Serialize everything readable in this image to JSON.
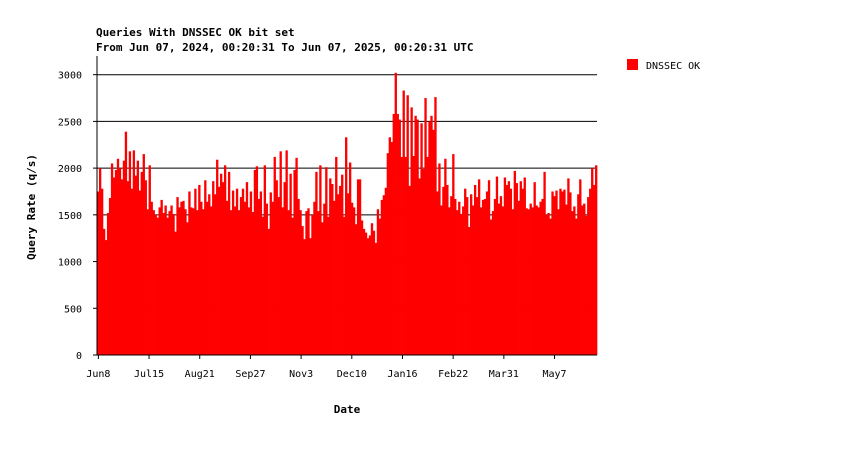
{
  "chart_data": {
    "type": "bar",
    "title": "Queries With DNSSEC OK bit set",
    "subtitle": "From Jun 07, 2024, 00:20:31 To Jun 07, 2025, 00:20:31 UTC",
    "xlabel": "Date",
    "ylabel": "Query Rate (q/s)",
    "x_start": "2024-06-07",
    "x_end": "2025-06-07",
    "ylim": [
      0,
      3200
    ],
    "yticks": [
      0,
      500,
      1000,
      1500,
      2000,
      2500,
      3000
    ],
    "xticks": [
      {
        "label": "Jun8",
        "date": "2024-06-08"
      },
      {
        "label": "Jul15",
        "date": "2024-07-15"
      },
      {
        "label": "Aug21",
        "date": "2024-08-21"
      },
      {
        "label": "Sep27",
        "date": "2024-09-27"
      },
      {
        "label": "Nov3",
        "date": "2024-11-03"
      },
      {
        "label": "Dec10",
        "date": "2024-12-10"
      },
      {
        "label": "Jan16",
        "date": "2025-01-16"
      },
      {
        "label": "Feb22",
        "date": "2025-02-22"
      },
      {
        "label": "Mar31",
        "date": "2025-03-31"
      },
      {
        "label": "May7",
        "date": "2025-05-07"
      }
    ],
    "grid": "horizontal",
    "legend_position": "right",
    "series": [
      {
        "name": "DNSSEC OK",
        "color": "#ff0000",
        "values": [
          1750,
          2000,
          1780,
          1350,
          1230,
          1520,
          1680,
          2050,
          1900,
          1980,
          2100,
          2000,
          1880,
          2080,
          2390,
          1860,
          2180,
          1780,
          2190,
          1920,
          2080,
          1760,
          1960,
          2150,
          1870,
          1560,
          2030,
          1640,
          1550,
          1500,
          1470,
          1580,
          1660,
          1520,
          1600,
          1470,
          1540,
          1600,
          1510,
          1320,
          1690,
          1580,
          1640,
          1650,
          1560,
          1420,
          1750,
          1580,
          1570,
          1780,
          1550,
          1820,
          1640,
          1560,
          1870,
          1640,
          1720,
          1590,
          1860,
          1720,
          2090,
          1800,
          1940,
          1850,
          2030,
          1650,
          1960,
          1550,
          1760,
          1590,
          1780,
          1550,
          1690,
          1780,
          1640,
          1850,
          1580,
          1750,
          1530,
          1980,
          2020,
          1670,
          1750,
          1480,
          2030,
          1620,
          1350,
          1740,
          1640,
          2120,
          1870,
          1690,
          2180,
          1580,
          1850,
          2190,
          1550,
          1940,
          1470,
          1980,
          2110,
          1670,
          1550,
          1380,
          1240,
          1540,
          1570,
          1250,
          1500,
          1640,
          1960,
          1540,
          2030,
          1420,
          1620,
          2010,
          1480,
          1890,
          1830,
          1650,
          2120,
          1720,
          1810,
          1930,
          1480,
          2330,
          1730,
          2060,
          1630,
          1580,
          1400,
          1880,
          1880,
          1440,
          1350,
          1310,
          1250,
          1280,
          1410,
          1330,
          1200,
          1560,
          1460,
          1660,
          1710,
          1790,
          2160,
          2330,
          2280,
          2580,
          3020,
          2580,
          2520,
          2120,
          2830,
          2120,
          2780,
          1810,
          2650,
          2130,
          2560,
          2520,
          1890,
          2480,
          1990,
          2750,
          2120,
          2500,
          2560,
          2410,
          2760,
          1750,
          2050,
          1600,
          1800,
          2100,
          1820,
          1580,
          1700,
          2150,
          1670,
          1550,
          1640,
          1510,
          1590,
          1780,
          1690,
          1370,
          1720,
          1600,
          1820,
          1690,
          1880,
          1580,
          1660,
          1670,
          1750,
          1870,
          1450,
          1540,
          1670,
          1910,
          1620,
          1700,
          1590,
          1900,
          1820,
          1860,
          1780,
          1560,
          1970,
          1840,
          1650,
          1860,
          1780,
          1900,
          1570,
          1560,
          1620,
          1580,
          1850,
          1600,
          1580,
          1640,
          1670,
          1960,
          1500,
          1520,
          1460,
          1750,
          1700,
          1760,
          1560,
          1780,
          1750,
          1770,
          1610,
          1890,
          1740,
          1540,
          1590,
          1460,
          1720,
          1880,
          1600,
          1620,
          1490,
          1690,
          1780,
          2000,
          1820,
          2030
        ]
      }
    ]
  }
}
